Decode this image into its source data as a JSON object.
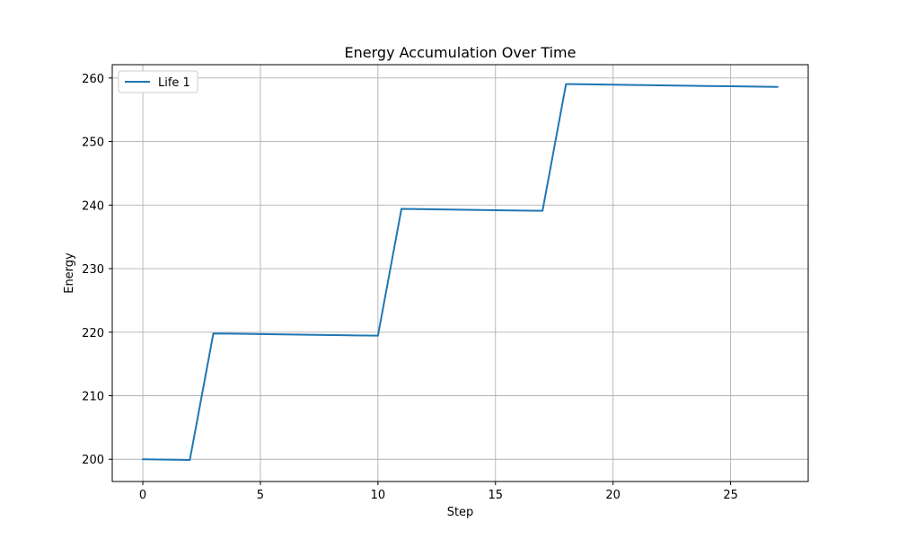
{
  "chart_data": {
    "type": "line",
    "title": "Energy Accumulation Over Time",
    "xlabel": "Step",
    "ylabel": "Energy",
    "xlim": [
      -1.3,
      28.3
    ],
    "ylim": [
      196.5,
      262.1
    ],
    "x_ticks": [
      0,
      5,
      10,
      15,
      20,
      25
    ],
    "y_ticks": [
      200,
      210,
      220,
      230,
      240,
      250,
      260
    ],
    "grid": true,
    "legend_position": "top-left",
    "x": [
      0,
      1,
      2,
      3,
      4,
      5,
      6,
      7,
      8,
      9,
      10,
      11,
      12,
      13,
      14,
      15,
      16,
      17,
      18,
      19,
      20,
      21,
      22,
      23,
      24,
      25,
      26,
      27
    ],
    "series": [
      {
        "name": "Life 1",
        "color": "#1f77b4",
        "values": [
          200.0,
          199.95,
          199.9,
          219.8,
          219.75,
          219.7,
          219.65,
          219.6,
          219.55,
          219.5,
          219.45,
          239.4,
          239.35,
          239.3,
          239.25,
          239.2,
          239.15,
          239.1,
          259.05,
          259.0,
          258.95,
          258.9,
          258.85,
          258.8,
          258.75,
          258.7,
          258.65,
          258.6
        ]
      }
    ]
  }
}
